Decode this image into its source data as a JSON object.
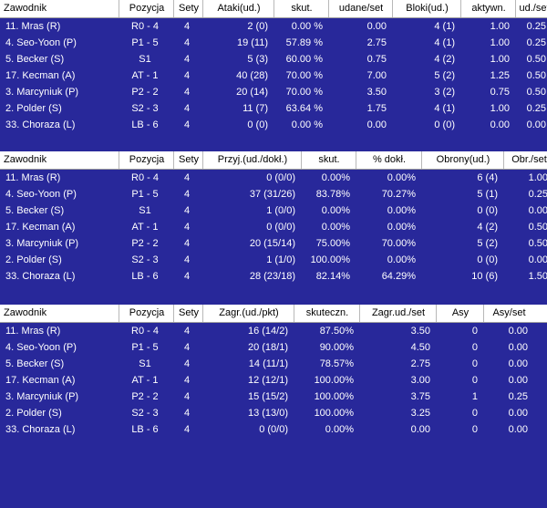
{
  "tables": [
    {
      "headers": [
        "Zawodnik",
        "Pozycja",
        "Sety",
        "Ataki(ud.)",
        "skut.",
        "udane/set",
        "Bloki(ud.)",
        "aktywn.",
        "ud./set"
      ],
      "rows": [
        [
          "11. Mras (R)",
          "R0 - 4",
          "4",
          "2 (0)",
          "0.00 %",
          "0.00",
          "4 (1)",
          "1.00",
          "0.25"
        ],
        [
          "4. Seo-Yoon (P)",
          "P1 - 5",
          "4",
          "19 (11)",
          "57.89 %",
          "2.75",
          "4 (1)",
          "1.00",
          "0.25"
        ],
        [
          "5. Becker (S)",
          "S1",
          "4",
          "5 (3)",
          "60.00 %",
          "0.75",
          "4 (2)",
          "1.00",
          "0.50"
        ],
        [
          "17. Kecman (A)",
          "AT - 1",
          "4",
          "40 (28)",
          "70.00 %",
          "7.00",
          "5 (2)",
          "1.25",
          "0.50"
        ],
        [
          "3. Marcyniuk (P)",
          "P2 - 2",
          "4",
          "20 (14)",
          "70.00 %",
          "3.50",
          "3 (2)",
          "0.75",
          "0.50"
        ],
        [
          "2. Polder (S)",
          "S2 - 3",
          "4",
          "11 (7)",
          "63.64 %",
          "1.75",
          "4 (1)",
          "1.00",
          "0.25"
        ],
        [
          "33. Choraza (L)",
          "LB - 6",
          "4",
          "0 (0)",
          "0.00 %",
          "0.00",
          "0 (0)",
          "0.00",
          "0.00"
        ]
      ]
    },
    {
      "headers": [
        "Zawodnik",
        "Pozycja",
        "Sety",
        "Przyj.(ud./dokł.)",
        "skut.",
        "% dokł.",
        "Obrony(ud.)",
        "Obr./set"
      ],
      "rows": [
        [
          "11. Mras (R)",
          "R0 - 4",
          "4",
          "0 (0/0)",
          "0.00%",
          "0.00%",
          "6 (4)",
          "1.00"
        ],
        [
          "4. Seo-Yoon (P)",
          "P1 - 5",
          "4",
          "37 (31/26)",
          "83.78%",
          "70.27%",
          "5 (1)",
          "0.25"
        ],
        [
          "5. Becker (S)",
          "S1",
          "4",
          "1 (0/0)",
          "0.00%",
          "0.00%",
          "0 (0)",
          "0.00"
        ],
        [
          "17. Kecman (A)",
          "AT - 1",
          "4",
          "0 (0/0)",
          "0.00%",
          "0.00%",
          "4 (2)",
          "0.50"
        ],
        [
          "3. Marcyniuk (P)",
          "P2 - 2",
          "4",
          "20 (15/14)",
          "75.00%",
          "70.00%",
          "5 (2)",
          "0.50"
        ],
        [
          "2. Polder (S)",
          "S2 - 3",
          "4",
          "1 (1/0)",
          "100.00%",
          "0.00%",
          "0 (0)",
          "0.00"
        ],
        [
          "33. Choraza (L)",
          "LB - 6",
          "4",
          "28 (23/18)",
          "82.14%",
          "64.29%",
          "10 (6)",
          "1.50"
        ]
      ]
    },
    {
      "headers": [
        "Zawodnik",
        "Pozycja",
        "Sety",
        "Zagr.(ud./pkt)",
        "skuteczn.",
        "Zagr.ud./set",
        "Asy",
        "Asy/set"
      ],
      "rows": [
        [
          "11. Mras (R)",
          "R0 - 4",
          "4",
          "16 (14/2)",
          "87.50%",
          "3.50",
          "0",
          "0.00"
        ],
        [
          "4. Seo-Yoon (P)",
          "P1 - 5",
          "4",
          "20 (18/1)",
          "90.00%",
          "4.50",
          "0",
          "0.00"
        ],
        [
          "5. Becker (S)",
          "S1",
          "4",
          "14 (11/1)",
          "78.57%",
          "2.75",
          "0",
          "0.00"
        ],
        [
          "17. Kecman (A)",
          "AT - 1",
          "4",
          "12 (12/1)",
          "100.00%",
          "3.00",
          "0",
          "0.00"
        ],
        [
          "3. Marcyniuk (P)",
          "P2 - 2",
          "4",
          "15 (15/2)",
          "100.00%",
          "3.75",
          "1",
          "0.25"
        ],
        [
          "2. Polder (S)",
          "S2 - 3",
          "4",
          "13 (13/0)",
          "100.00%",
          "3.25",
          "0",
          "0.00"
        ],
        [
          "33. Choraza (L)",
          "LB - 6",
          "4",
          "0 (0/0)",
          "0.00%",
          "0.00",
          "0",
          "0.00"
        ]
      ]
    }
  ],
  "colors": {
    "background": "#28289a",
    "header_bg": "#ffffff",
    "text": "#ffffff"
  }
}
